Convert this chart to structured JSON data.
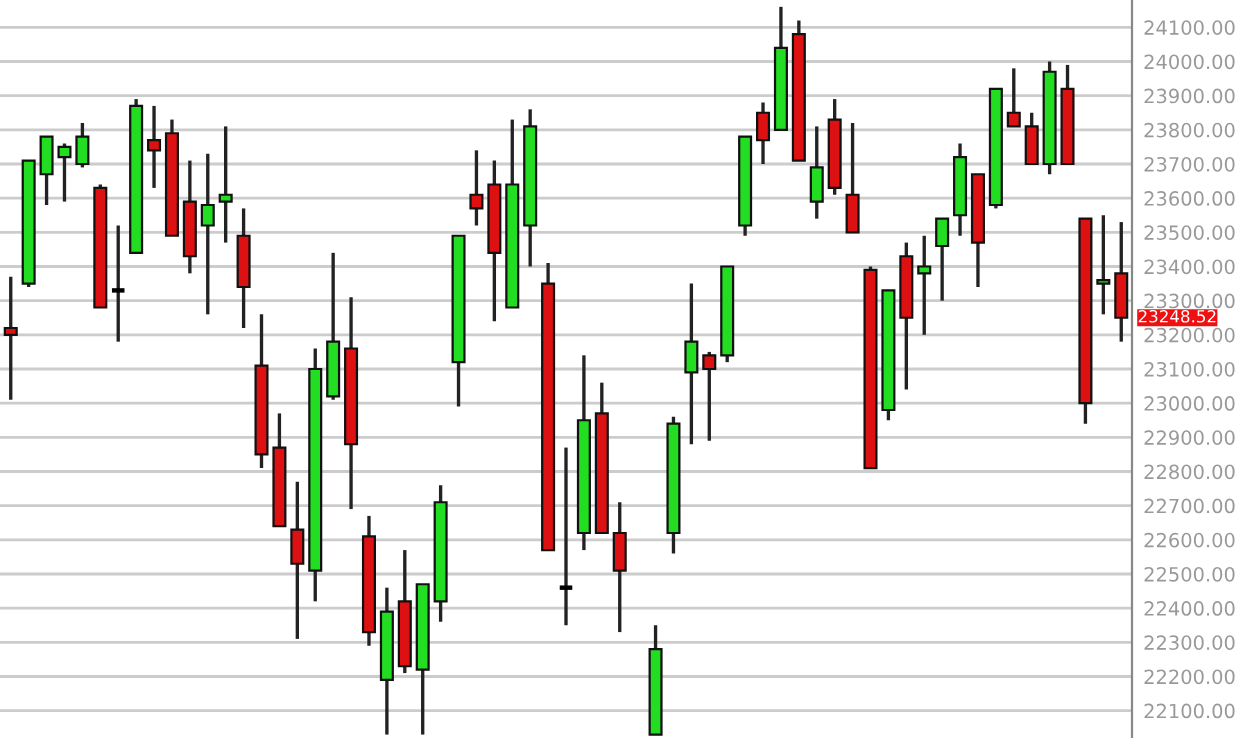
{
  "chart_data": {
    "type": "candlestick",
    "categories": [
      null,
      null,
      null,
      null,
      null,
      null,
      null,
      null,
      null,
      null,
      null,
      null,
      null,
      null,
      null,
      null,
      null,
      null,
      null,
      null,
      null,
      null,
      null,
      null,
      null,
      null,
      null,
      null,
      null,
      null,
      null,
      null,
      null,
      null,
      null,
      null,
      null,
      null,
      null,
      null,
      null,
      null,
      null,
      null,
      null,
      null,
      null,
      null,
      null,
      null,
      null,
      null,
      null,
      null,
      null,
      null,
      null,
      null,
      null,
      null,
      null,
      null,
      null
    ],
    "ohlc": [
      [
        23220,
        23370,
        23010,
        23200
      ],
      [
        23350,
        23710,
        23340,
        23710
      ],
      [
        23670,
        23780,
        23580,
        23780
      ],
      [
        23720,
        23760,
        23590,
        23750
      ],
      [
        23700,
        23820,
        23690,
        23780
      ],
      [
        23630,
        23640,
        23280,
        23280
      ],
      [
        23330,
        23520,
        23180,
        23330
      ],
      [
        23440,
        23890,
        23440,
        23870
      ],
      [
        23770,
        23870,
        23630,
        23740
      ],
      [
        23790,
        23830,
        23490,
        23490
      ],
      [
        23590,
        23710,
        23380,
        23430
      ],
      [
        23520,
        23730,
        23260,
        23580
      ],
      [
        23590,
        23810,
        23470,
        23610
      ],
      [
        23490,
        23570,
        23220,
        23340
      ],
      [
        23110,
        23260,
        22810,
        22850
      ],
      [
        22870,
        22970,
        22640,
        22640
      ],
      [
        22630,
        22770,
        22310,
        22530
      ],
      [
        22510,
        23160,
        22420,
        23100
      ],
      [
        23020,
        23440,
        23010,
        23180
      ],
      [
        23160,
        23310,
        22690,
        22880
      ],
      [
        22610,
        22670,
        22290,
        22330
      ],
      [
        22190,
        22460,
        22030,
        22390
      ],
      [
        22420,
        22570,
        22210,
        22230
      ],
      [
        22220,
        22470,
        22030,
        22470
      ],
      [
        22420,
        22760,
        22360,
        22710
      ],
      [
        23120,
        23490,
        22990,
        23490
      ],
      [
        23610,
        23740,
        23520,
        23570
      ],
      [
        23640,
        23710,
        23240,
        23440
      ],
      [
        23280,
        23830,
        23280,
        23640
      ],
      [
        23520,
        23860,
        23400,
        23810
      ],
      [
        23350,
        23410,
        22570,
        22570
      ],
      [
        22460,
        22870,
        22350,
        22460
      ],
      [
        22620,
        23140,
        22570,
        22950
      ],
      [
        22970,
        23060,
        22620,
        22620
      ],
      [
        22620,
        22710,
        22330,
        22510
      ],
      null,
      [
        22030,
        22350,
        22030,
        22280
      ],
      [
        22620,
        22960,
        22560,
        22940
      ],
      [
        23090,
        23350,
        22880,
        23180
      ],
      [
        23140,
        23150,
        22890,
        23100
      ],
      [
        23140,
        23400,
        23120,
        23400
      ],
      [
        23520,
        23780,
        23490,
        23780
      ],
      [
        23850,
        23880,
        23700,
        23770
      ],
      [
        23800,
        24160,
        23800,
        24040
      ],
      [
        24080,
        24120,
        23710,
        23710
      ],
      [
        23590,
        23810,
        23540,
        23690
      ],
      [
        23830,
        23890,
        23610,
        23630
      ],
      [
        23610,
        23820,
        23500,
        23500
      ],
      [
        23390,
        23400,
        22810,
        22810
      ],
      [
        22980,
        23330,
        22950,
        23330
      ],
      [
        23430,
        23470,
        23040,
        23250
      ],
      [
        23380,
        23490,
        23200,
        23400
      ],
      [
        23460,
        23540,
        23300,
        23540
      ],
      [
        23550,
        23760,
        23490,
        23720
      ],
      [
        23670,
        23670,
        23340,
        23470
      ],
      [
        23580,
        23920,
        23570,
        23920
      ],
      [
        23850,
        23980,
        23810,
        23810
      ],
      [
        23810,
        23850,
        23700,
        23700
      ],
      [
        23700,
        24000,
        23670,
        23970
      ],
      [
        23920,
        23990,
        23700,
        23700
      ],
      [
        23540,
        23540,
        22940,
        23000
      ],
      [
        23350,
        23550,
        23260,
        23360
      ],
      [
        23380,
        23530,
        23180,
        23250
      ]
    ],
    "colors": [
      "#dd1111",
      "#22dd22",
      "#22dd22",
      "#22dd22",
      "#22dd22",
      "#dd1111",
      "#000000",
      "#22dd22",
      "#dd1111",
      "#dd1111",
      "#dd1111",
      "#22dd22",
      "#22dd22",
      "#dd1111",
      "#dd1111",
      "#dd1111",
      "#dd1111",
      "#22dd22",
      "#22dd22",
      "#dd1111",
      "#dd1111",
      "#22dd22",
      "#dd1111",
      "#22dd22",
      "#22dd22",
      "#22dd22",
      "#dd1111",
      "#dd1111",
      "#22dd22",
      "#22dd22",
      "#dd1111",
      "#000000",
      "#22dd22",
      "#dd1111",
      "#dd1111",
      "#22dd22",
      "#22dd22",
      "#22dd22",
      "#22dd22",
      "#dd1111",
      "#22dd22",
      "#22dd22",
      "#dd1111",
      "#22dd22",
      "#dd1111",
      "#22dd22",
      "#dd1111",
      "#dd1111",
      "#dd1111",
      "#22dd22",
      "#dd1111",
      "#22dd22",
      "#22dd22",
      "#22dd22",
      "#dd1111",
      "#22dd22",
      "#dd1111",
      "#dd1111",
      "#22dd22",
      "#dd1111",
      "#dd1111",
      "#22dd22",
      "#dd1111"
    ],
    "ylim": [
      22020,
      24180
    ],
    "yticks": [
      {
        "value": 22100,
        "label": "22100.00"
      },
      {
        "value": 22200,
        "label": "22200.00"
      },
      {
        "value": 22300,
        "label": "22300.00"
      },
      {
        "value": 22400,
        "label": "22400.00"
      },
      {
        "value": 22500,
        "label": "22500.00"
      },
      {
        "value": 22600,
        "label": "22600.00"
      },
      {
        "value": 22700,
        "label": "22700.00"
      },
      {
        "value": 22800,
        "label": "22800.00"
      },
      {
        "value": 22900,
        "label": "22900.00"
      },
      {
        "value": 23000,
        "label": "23000.00"
      },
      {
        "value": 23100,
        "label": "23100.00"
      },
      {
        "value": 23200,
        "label": "23200.00"
      },
      {
        "value": 23300,
        "label": "23300.00"
      },
      {
        "value": 23400,
        "label": "23400.00"
      },
      {
        "value": 23500,
        "label": "23500.00"
      },
      {
        "value": 23600,
        "label": "23600.00"
      },
      {
        "value": 23700,
        "label": "23700.00"
      },
      {
        "value": 23800,
        "label": "23800.00"
      },
      {
        "value": 23900,
        "label": "23900.00"
      },
      {
        "value": 24000,
        "label": "24000.00"
      },
      {
        "value": 24100,
        "label": "24100.00"
      }
    ],
    "grid": "y",
    "annotations": [
      "23248.52"
    ]
  }
}
